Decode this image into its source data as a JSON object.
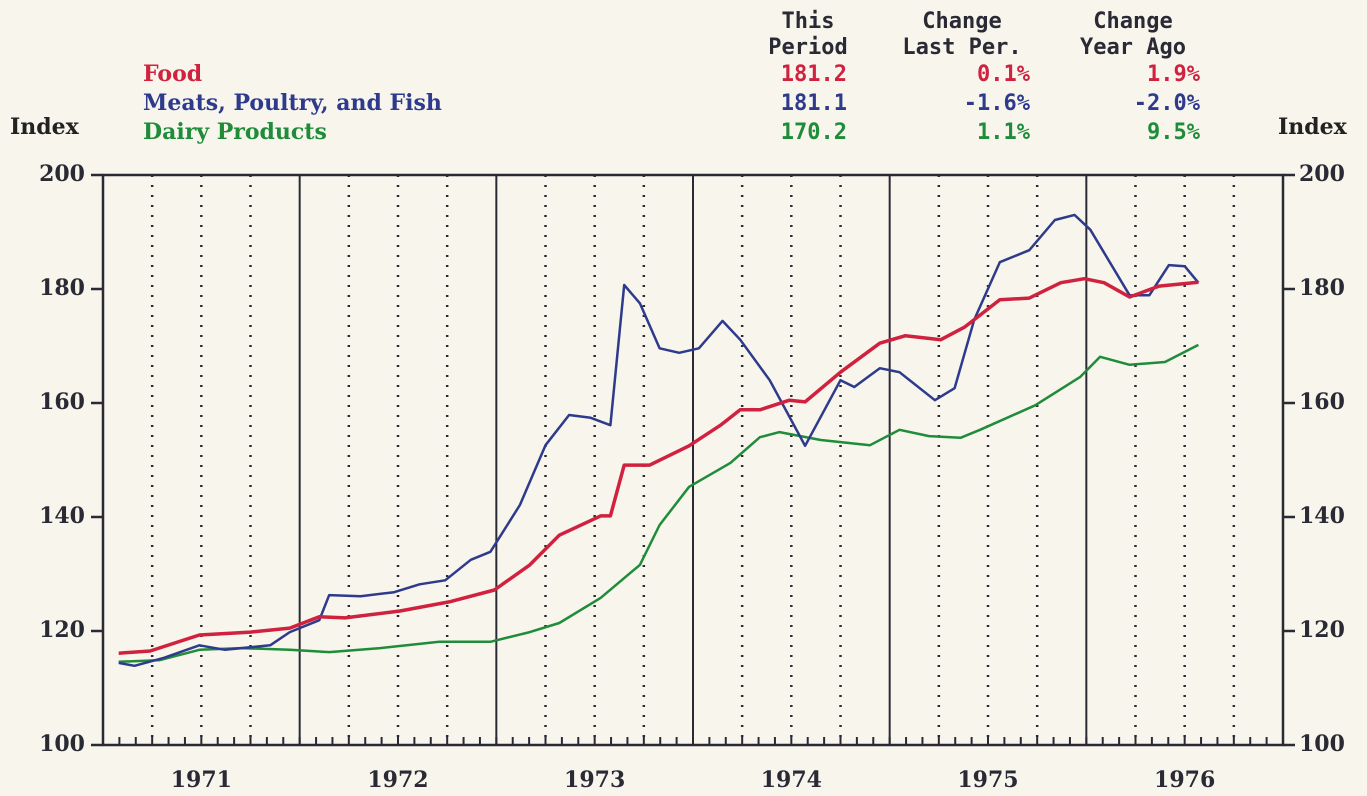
{
  "chart_data": {
    "type": "line",
    "ylabel": "Index",
    "y2label": "Index",
    "xlim": [
      1971,
      1977
    ],
    "ylim": [
      100,
      200
    ],
    "yticks": [
      100,
      120,
      140,
      160,
      180,
      200
    ],
    "y2lim": [
      100,
      200
    ],
    "y2ticks": [
      100,
      120,
      140,
      160,
      180,
      200
    ],
    "xticks": [
      {
        "value": 1971.5,
        "label": "1971"
      },
      {
        "value": 1972.5,
        "label": "1972"
      },
      {
        "value": 1973.5,
        "label": "1973"
      },
      {
        "value": 1974.5,
        "label": "1974"
      },
      {
        "value": 1975.5,
        "label": "1975"
      },
      {
        "value": 1976.5,
        "label": "1976"
      }
    ],
    "summary": {
      "headers": [
        [
          "This",
          "Period"
        ],
        [
          "Change",
          "Last Per."
        ],
        [
          "Change",
          "Year Ago"
        ]
      ],
      "rows": [
        [
          "181.2",
          "0.1%",
          "1.9%"
        ],
        [
          "181.1",
          "-1.6%",
          "-2.0%"
        ],
        [
          "170.2",
          "1.1%",
          "9.5%"
        ]
      ]
    },
    "series": [
      {
        "name": "Food",
        "color": "#d0213f",
        "x": [
          1971.08,
          1971.24,
          1971.49,
          1971.75,
          1971.95,
          1972.1,
          1972.23,
          1972.51,
          1972.76,
          1972.99,
          1973.17,
          1973.32,
          1973.53,
          1973.58,
          1973.65,
          1973.78,
          1973.98,
          1974.14,
          1974.24,
          1974.34,
          1974.49,
          1974.57,
          1974.75,
          1974.95,
          1975.08,
          1975.26,
          1975.38,
          1975.56,
          1975.71,
          1975.87,
          1975.99,
          1976.09,
          1976.22,
          1976.37,
          1976.57
        ],
        "values": [
          116.1,
          116.5,
          119.3,
          119.8,
          120.5,
          122.5,
          122.3,
          123.5,
          125.1,
          127.2,
          131.6,
          136.8,
          140.2,
          140.2,
          149.1,
          149.1,
          152.5,
          156.1,
          158.8,
          158.8,
          160.5,
          160.2,
          165.4,
          170.5,
          171.8,
          171.1,
          173.3,
          178.1,
          178.4,
          181.1,
          181.8,
          181.1,
          178.6,
          180.5,
          181.2
        ]
      },
      {
        "name": "Meats, Poultry, and Fish",
        "color": "#2e3a8c",
        "x": [
          1971.08,
          1971.16,
          1971.31,
          1971.49,
          1971.62,
          1971.85,
          1971.95,
          1972.1,
          1972.15,
          1972.31,
          1972.48,
          1972.61,
          1972.74,
          1972.87,
          1972.97,
          1973.12,
          1973.25,
          1973.37,
          1973.48,
          1973.58,
          1973.65,
          1973.73,
          1973.83,
          1973.93,
          1974.03,
          1974.15,
          1974.24,
          1974.39,
          1974.57,
          1974.75,
          1974.82,
          1974.95,
          1975.05,
          1975.23,
          1975.33,
          1975.43,
          1975.56,
          1975.71,
          1975.84,
          1975.94,
          1976.02,
          1976.22,
          1976.32,
          1976.42,
          1976.5,
          1976.57
        ],
        "values": [
          114.4,
          113.9,
          115.3,
          117.5,
          116.7,
          117.5,
          119.8,
          121.9,
          126.3,
          126.1,
          126.8,
          128.2,
          128.9,
          132.5,
          133.9,
          142.1,
          152.6,
          157.9,
          157.4,
          156.1,
          180.7,
          177.5,
          169.6,
          168.8,
          169.6,
          174.4,
          171.1,
          164.0,
          152.5,
          164.0,
          162.8,
          166.1,
          165.4,
          160.5,
          162.6,
          174.6,
          184.7,
          186.8,
          192.1,
          193.0,
          190.4,
          178.9,
          178.9,
          184.2,
          184.0,
          181.1
        ]
      },
      {
        "name": "Dairy Products",
        "color": "#1f8c3a",
        "x": [
          1971.08,
          1971.29,
          1971.49,
          1971.7,
          1971.95,
          1972.15,
          1972.41,
          1972.71,
          1972.97,
          1973.17,
          1973.32,
          1973.53,
          1973.73,
          1973.83,
          1973.98,
          1974.19,
          1974.34,
          1974.44,
          1974.65,
          1974.9,
          1975.05,
          1975.2,
          1975.36,
          1975.46,
          1975.74,
          1975.97,
          1976.07,
          1976.22,
          1976.4,
          1976.57
        ],
        "values": [
          114.6,
          114.9,
          116.7,
          117.0,
          116.7,
          116.3,
          117.0,
          118.1,
          118.1,
          119.8,
          121.4,
          125.8,
          131.6,
          138.6,
          145.3,
          149.5,
          154.0,
          154.9,
          153.5,
          152.6,
          155.3,
          154.2,
          153.9,
          155.3,
          159.6,
          164.6,
          168.1,
          166.7,
          167.2,
          170.2
        ]
      }
    ]
  }
}
